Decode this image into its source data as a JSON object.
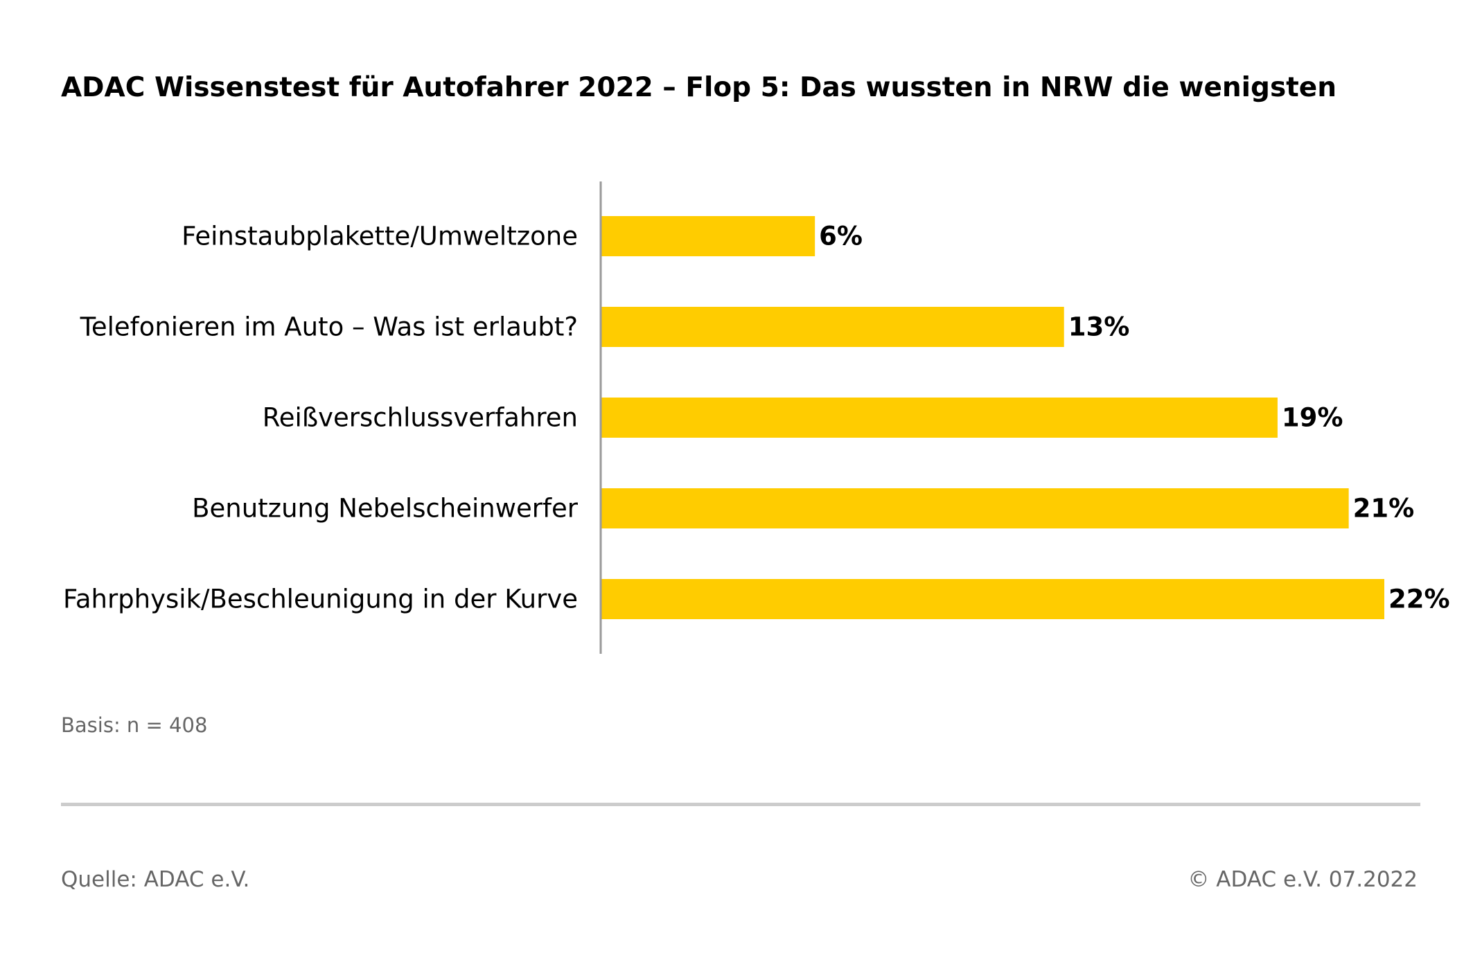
{
  "title": "ADAC Wissenstest für Autofahrer 2022 – Flop 5: Das wussten in NRW die wenigsten",
  "basis": "Basis: n = 408",
  "source": "Quelle: ADAC e.V.",
  "copyright": "© ADAC e.V. 07.2022",
  "colors": {
    "bar": "#FFCC00",
    "axis": "#999999",
    "text": "#000000",
    "muted": "#666666"
  },
  "chart_data": {
    "type": "bar",
    "orientation": "horizontal",
    "categories": [
      "Feinstaubplakette/Umweltzone",
      "Telefonieren im Auto – Was ist erlaubt?",
      "Reißverschlussverfahren",
      "Benutzung Nebelscheinwerfer",
      "Fahrphysik/Beschleunigung in der Kurve"
    ],
    "values": [
      6,
      13,
      19,
      21,
      22
    ],
    "value_labels": [
      "6%",
      "13%",
      "19%",
      "21%",
      "22%"
    ],
    "unit": "%",
    "xlim": [
      0,
      22
    ],
    "grid": false,
    "legend": "none"
  }
}
